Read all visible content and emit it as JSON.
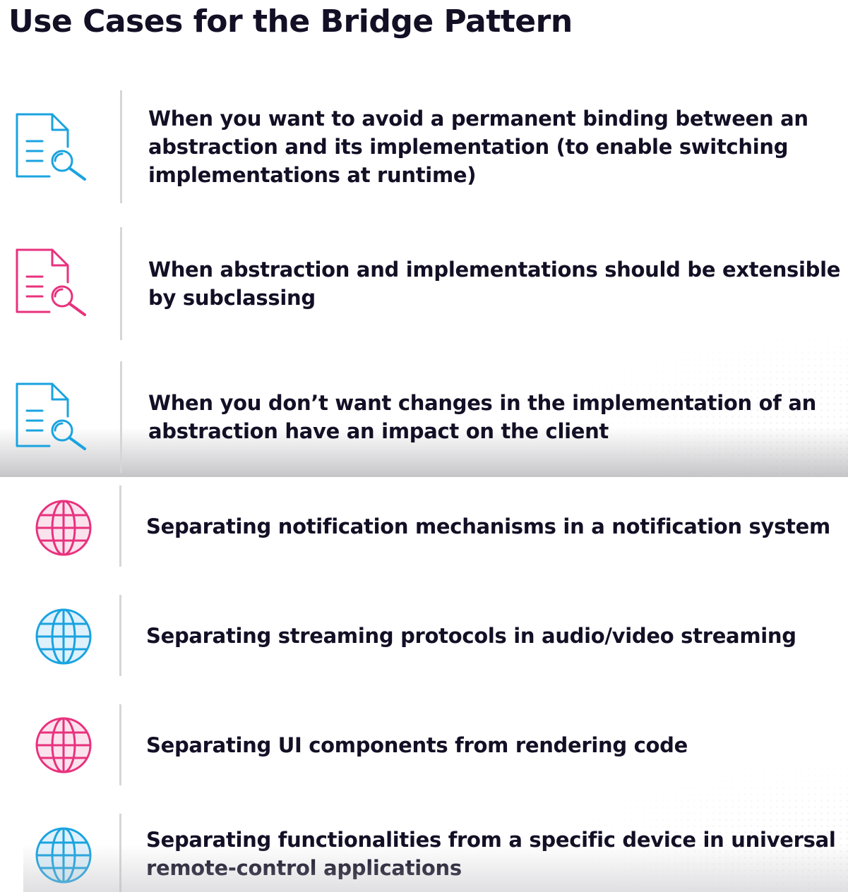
{
  "title": "Use Cases for the Bridge Pattern",
  "colors": {
    "blue": "#1aa3e0",
    "pink": "#e8327d",
    "text": "#130f25",
    "divider": "#d6d6d9"
  },
  "top_items": [
    {
      "icon": "document-search-icon",
      "color": "blue",
      "text": "When you want to avoid a permanent binding between an abstraction and its implementation (to enable switching implementations at runtime)"
    },
    {
      "icon": "document-search-icon",
      "color": "pink",
      "text": "When abstraction and implementations should be extensible by subclassing"
    },
    {
      "icon": "document-search-icon",
      "color": "blue",
      "text": "When you don’t want changes in the implementation of an abstraction have an impact on the client"
    }
  ],
  "bottom_items": [
    {
      "icon": "globe-icon",
      "color": "pink",
      "text": "Separating notification mechanisms in a notification system"
    },
    {
      "icon": "globe-icon",
      "color": "blue",
      "text": "Separating streaming protocols in audio/video streaming"
    },
    {
      "icon": "globe-icon",
      "color": "pink",
      "text": "Separating UI components from rendering code"
    },
    {
      "icon": "globe-icon",
      "color": "blue",
      "text": "Separating functionalities from a specific device in universal remote-control applications"
    }
  ]
}
